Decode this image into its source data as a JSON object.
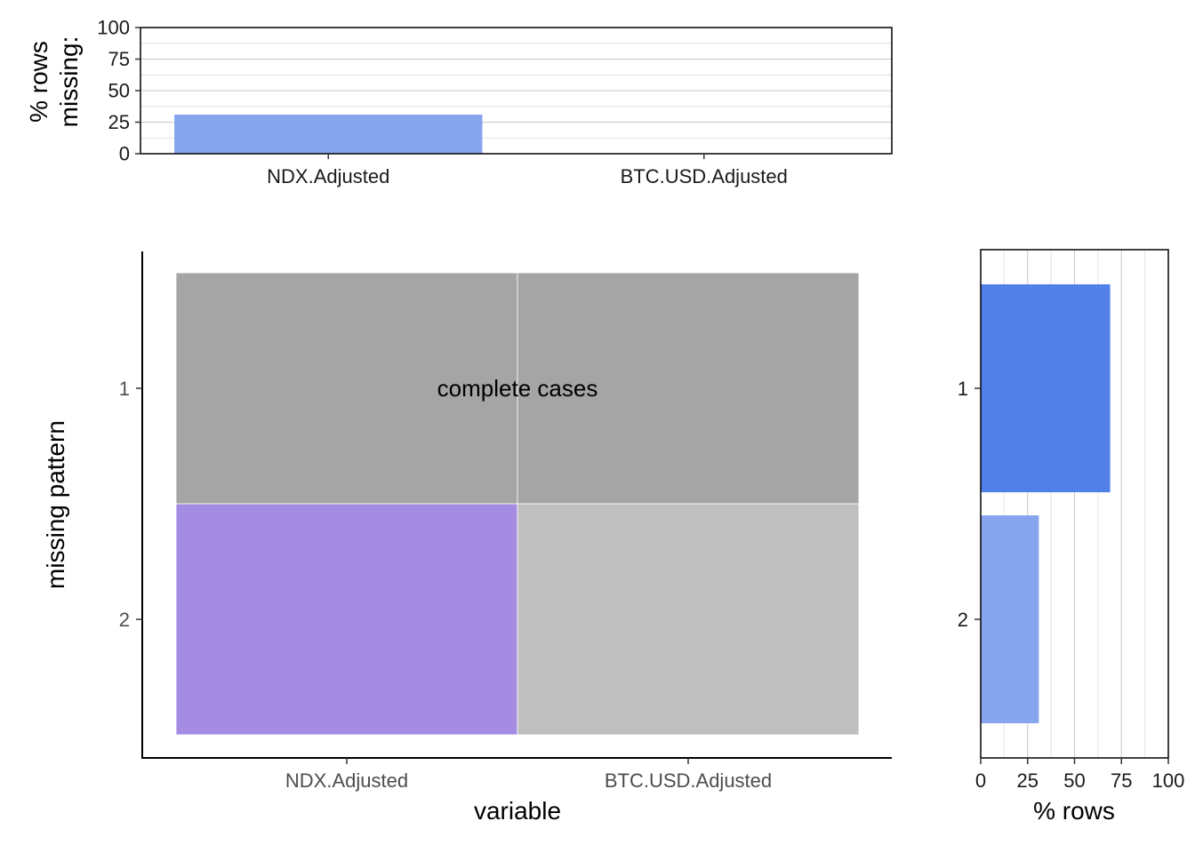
{
  "chart_data": [
    {
      "type": "bar",
      "panel": "top",
      "categories": [
        "NDX.Adjusted",
        "BTC.USD.Adjusted"
      ],
      "values": [
        31,
        0
      ],
      "ylabel": "% rows\nmissing:",
      "ylim": [
        0,
        100
      ],
      "yticks": [
        0,
        25,
        50,
        75,
        100
      ],
      "bar_color": "#87a5ef",
      "grid": true
    },
    {
      "type": "heatmap",
      "panel": "main",
      "x_categories": [
        "NDX.Adjusted",
        "BTC.USD.Adjusted"
      ],
      "y_categories": [
        "1",
        "2"
      ],
      "xlabel": "variable",
      "ylabel": "missing pattern",
      "cells": [
        {
          "pattern": "1",
          "variable": "NDX.Adjusted",
          "missing": false,
          "color": "#a5a5a5"
        },
        {
          "pattern": "1",
          "variable": "BTC.USD.Adjusted",
          "missing": false,
          "color": "#a5a5a5"
        },
        {
          "pattern": "2",
          "variable": "NDX.Adjusted",
          "missing": true,
          "color": "#a58ce3"
        },
        {
          "pattern": "2",
          "variable": "BTC.USD.Adjusted",
          "missing": false,
          "color": "#bfbfbf"
        }
      ],
      "annotation": {
        "pattern": "1",
        "text": "complete cases"
      }
    },
    {
      "type": "bar",
      "panel": "right",
      "orientation": "horizontal",
      "categories": [
        "1",
        "2"
      ],
      "values": [
        69,
        31
      ],
      "colors": [
        "#5280e9",
        "#87a5ef"
      ],
      "xlabel": "% rows",
      "xlim": [
        0,
        100
      ],
      "xticks": [
        0,
        25,
        50,
        75,
        100
      ],
      "grid": true
    }
  ]
}
